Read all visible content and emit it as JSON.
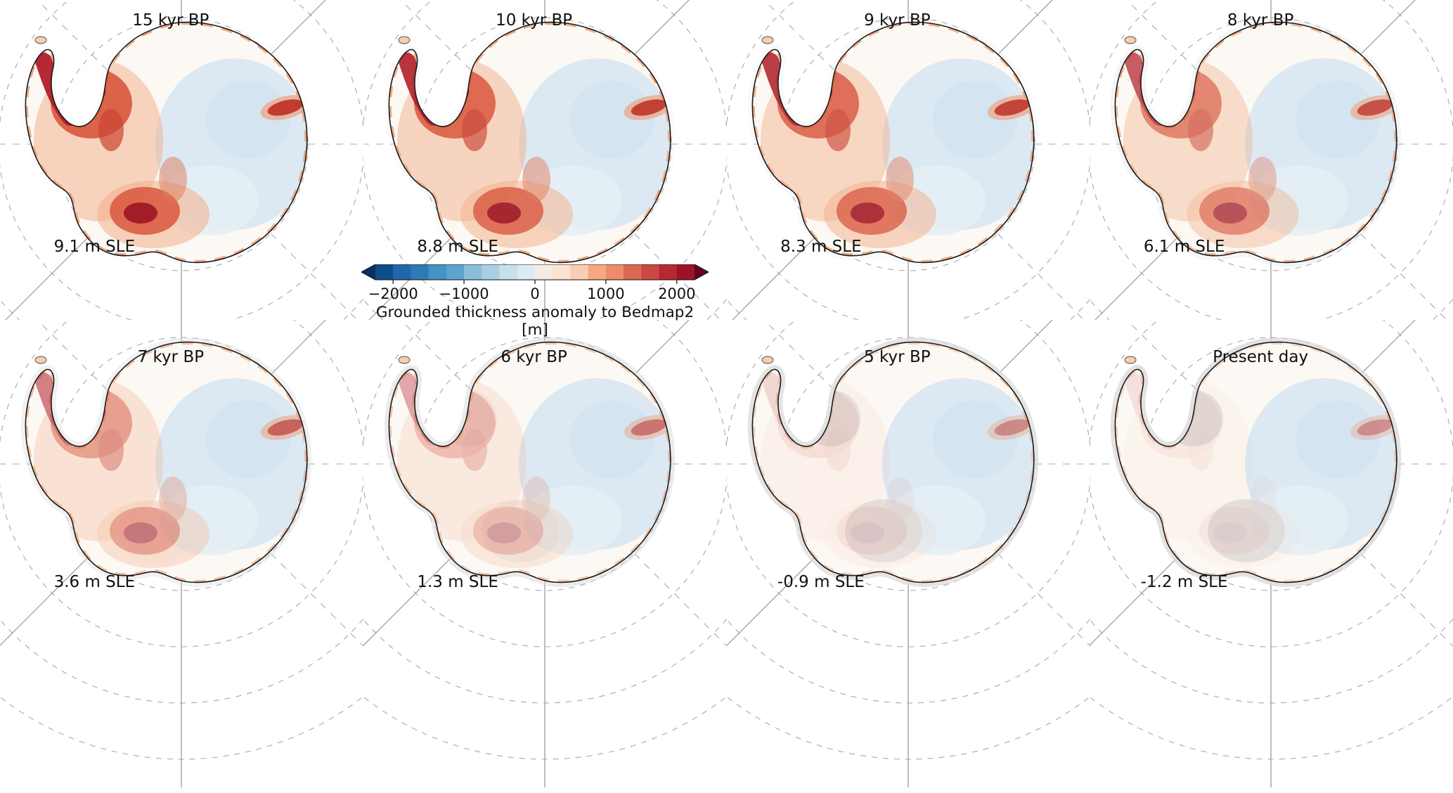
{
  "figure": {
    "background": "#ffffff"
  },
  "panels": [
    {
      "title": "15 kyr BP",
      "sle": "9.1 m SLE",
      "red_intensity": 1.0,
      "gray_extent": 0.1
    },
    {
      "title": "10 kyr BP",
      "sle": "8.8 m SLE",
      "red_intensity": 0.95,
      "gray_extent": 0.15
    },
    {
      "title": "9 kyr BP",
      "sle": "8.3 m SLE",
      "red_intensity": 0.9,
      "gray_extent": 0.2
    },
    {
      "title": "8 kyr BP",
      "sle": "6.1 m SLE",
      "red_intensity": 0.75,
      "gray_extent": 0.3
    },
    {
      "title": "7 kyr BP",
      "sle": "3.6 m SLE",
      "red_intensity": 0.58,
      "gray_extent": 0.45
    },
    {
      "title": "6 kyr BP",
      "sle": "1.3 m SLE",
      "red_intensity": 0.38,
      "gray_extent": 0.62
    },
    {
      "title": "5 kyr BP",
      "sle": "-0.9 m SLE",
      "red_intensity": 0.16,
      "gray_extent": 0.85
    },
    {
      "title": "Present day",
      "sle": "-1.2 m SLE",
      "red_intensity": 0.1,
      "gray_extent": 0.9
    }
  ],
  "colorbar": {
    "label": "Grounded thickness anomaly to Bedmap2 [m]",
    "ticks": [
      "−2000",
      "−1000",
      "0",
      "1000",
      "2000"
    ],
    "arrow_left_color": "#053061",
    "arrow_right_color": "#67001f",
    "colors": [
      "#104c87",
      "#2166ac",
      "#2f79b5",
      "#4393c3",
      "#60a3cc",
      "#8abfda",
      "#a9cfe5",
      "#c8dfec",
      "#ddeaf3",
      "#f3ece5",
      "#fbe3d1",
      "#f9cdb4",
      "#f4a983",
      "#ec8c6b",
      "#dc6852",
      "#cc4842",
      "#b82833",
      "#9a132a"
    ]
  },
  "map_colors": {
    "base": "#fcf8f3",
    "east_blue": "#dce8f2",
    "east_blue_dark": "#d2e2ef",
    "east_blue_light": "#e4eef5",
    "halo_orange": "#f2ae88",
    "mid_red": "#d8573d",
    "dark_red": "#8c1122",
    "darkest_red": "#5d0a19",
    "peninsula_red": "#b01e2a",
    "coast_orange": "#eb9f72",
    "shelf_gray": "#dcdcdc",
    "fringe_gray": "#d9d9d9",
    "outline": "#1a1a1a",
    "graticule": "#a8a8a8"
  },
  "chart_data": {
    "type": "heatmap",
    "title": "Grounded thickness anomaly to Bedmap2 [m]",
    "description": "Eight polar-stereographic maps of Antarctica showing modeled grounded ice thickness anomaly relative to Bedmap2 at successive times, with sea-level-equivalent (SLE) ice volume anomaly labels.",
    "panels": [
      {
        "time": "15 kyr BP",
        "sle_m": 9.1
      },
      {
        "time": "10 kyr BP",
        "sle_m": 8.8
      },
      {
        "time": "9 kyr BP",
        "sle_m": 8.3
      },
      {
        "time": "8 kyr BP",
        "sle_m": 6.1
      },
      {
        "time": "7 kyr BP",
        "sle_m": 3.6
      },
      {
        "time": "6 kyr BP",
        "sle_m": 1.3
      },
      {
        "time": "5 kyr BP",
        "sle_m": -0.9
      },
      {
        "time": "Present day",
        "sle_m": -1.2
      }
    ],
    "colorbar": {
      "label": "Grounded thickness anomaly to Bedmap2 [m]",
      "units": "m",
      "range": [
        -2250,
        2250
      ],
      "ticks": [
        -2000,
        -1000,
        0,
        1000,
        2000
      ],
      "colormap": "blue-white-red (RdBu reversed), discrete levels, arrow extensions both ends",
      "position": "centered between rows, below second panel of top row"
    },
    "layout": {
      "rows": 2,
      "cols": 4,
      "grid_order": [
        "15 kyr BP",
        "10 kyr BP",
        "9 kyr BP",
        "8 kyr BP",
        "7 kyr BP",
        "6 kyr BP",
        "5 kyr BP",
        "Present day"
      ]
    }
  }
}
